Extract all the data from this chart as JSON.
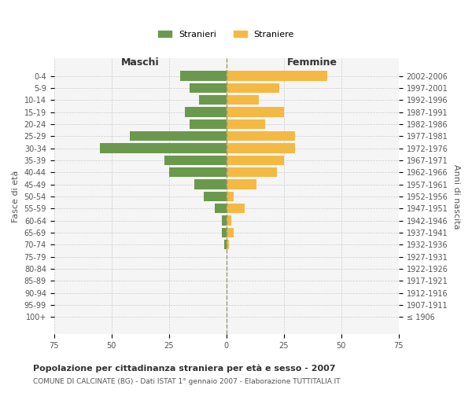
{
  "age_groups": [
    "100+",
    "95-99",
    "90-94",
    "85-89",
    "80-84",
    "75-79",
    "70-74",
    "65-69",
    "60-64",
    "55-59",
    "50-54",
    "45-49",
    "40-44",
    "35-39",
    "30-34",
    "25-29",
    "20-24",
    "15-19",
    "10-14",
    "5-9",
    "0-4"
  ],
  "birth_years": [
    "≤ 1906",
    "1907-1911",
    "1912-1916",
    "1917-1921",
    "1922-1926",
    "1927-1931",
    "1932-1936",
    "1937-1941",
    "1942-1946",
    "1947-1951",
    "1952-1956",
    "1957-1961",
    "1962-1966",
    "1967-1971",
    "1972-1976",
    "1977-1981",
    "1982-1986",
    "1987-1991",
    "1992-1996",
    "1997-2001",
    "2002-2006"
  ],
  "maschi": [
    0,
    0,
    0,
    0,
    0,
    0,
    1,
    2,
    2,
    5,
    10,
    14,
    25,
    27,
    55,
    42,
    16,
    18,
    12,
    16,
    20
  ],
  "femmine": [
    0,
    0,
    0,
    0,
    0,
    0,
    1,
    3,
    2,
    8,
    3,
    13,
    22,
    25,
    30,
    30,
    17,
    25,
    14,
    23,
    44
  ],
  "color_maschi": "#6a994e",
  "color_femmine": "#f4b942",
  "title": "Popolazione per cittadinanza straniera per età e sesso - 2007",
  "subtitle": "COMUNE DI CALCINATE (BG) - Dati ISTAT 1° gennaio 2007 - Elaborazione TUTTITALIA.IT",
  "xlabel_left": "Maschi",
  "xlabel_right": "Femmine",
  "ylabel_left": "Fasce di età",
  "ylabel_right": "Anni di nascita",
  "xlim": 75,
  "legend_stranieri": "Stranieri",
  "legend_straniere": "Straniere",
  "bg_color": "#ffffff",
  "plot_bg_color": "#f5f5f5",
  "grid_color": "#cccccc",
  "bar_height": 0.8
}
